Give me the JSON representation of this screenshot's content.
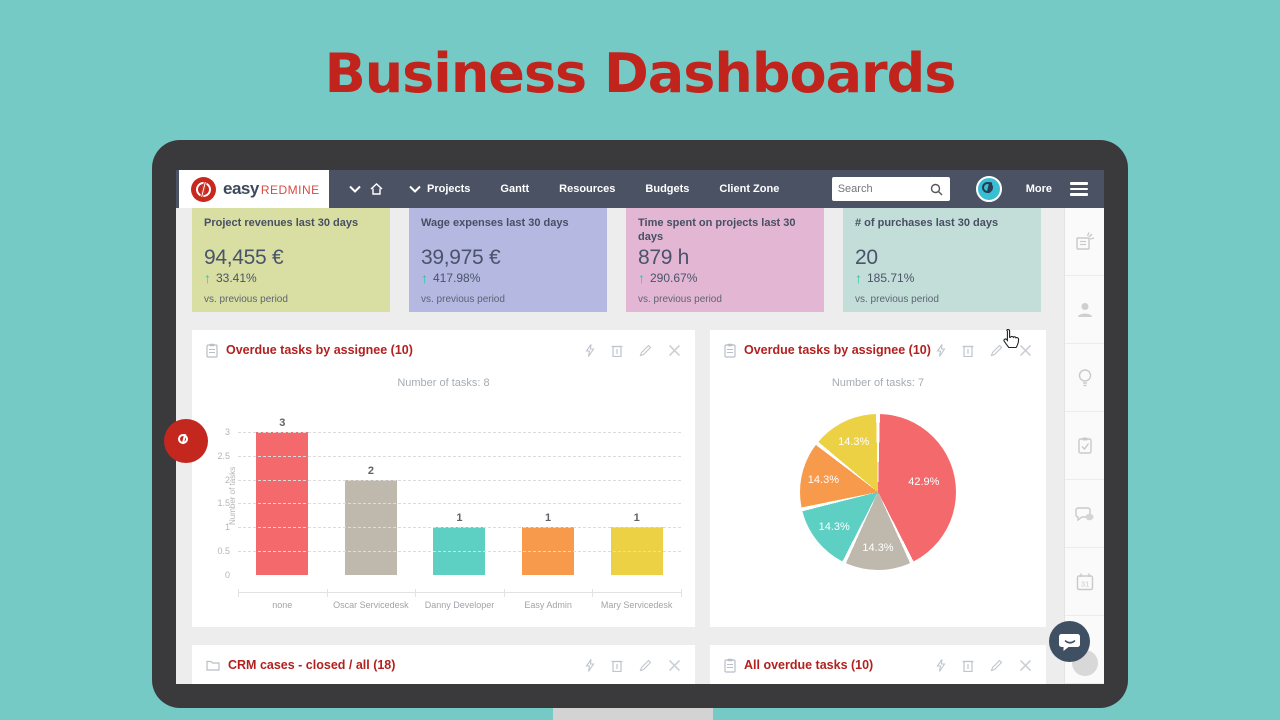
{
  "page_title": "Business Dashboards",
  "nav": {
    "brand": {
      "easy": "easy",
      "redmine": "REDMINE"
    },
    "items": [
      "Projects",
      "Gantt",
      "Resources",
      "Budgets",
      "Client Zone"
    ],
    "search_placeholder": "Search",
    "more_label": "More"
  },
  "kpis": [
    {
      "title": "Project revenues last 30 days",
      "value": "94,455 €",
      "change": "33.41%",
      "caption": "vs. previous period",
      "bg": "#d9dfa2"
    },
    {
      "title": "Wage expenses last 30 days",
      "value": "39,975 €",
      "change": "417.98%",
      "caption": "vs. previous period",
      "bg": "#b5b8e1"
    },
    {
      "title": "Time spent on projects last 30 days",
      "value": "879 h",
      "change": "290.67%",
      "caption": "vs. previous period",
      "bg": "#e3b7d3"
    },
    {
      "title": "# of purchases last 30 days",
      "value": "20",
      "change": "185.71%",
      "caption": "vs. previous period",
      "bg": "#c3ded9"
    }
  ],
  "panels": {
    "bar": {
      "title": "Overdue tasks by assignee (10)",
      "subtitle": "Number of tasks: 8"
    },
    "pie": {
      "title": "Overdue tasks by assignee (10)",
      "subtitle": "Number of tasks: 7"
    },
    "crm": {
      "title": "CRM cases - closed / all (18)"
    },
    "overdue_list": {
      "title": "All overdue tasks (10)"
    }
  },
  "chart_data": [
    {
      "type": "bar",
      "title": "Overdue tasks by assignee (10)",
      "subtitle": "Number of tasks: 8",
      "categories": [
        "none",
        "Oscar Servicedesk",
        "Danny Developer",
        "Easy Admin",
        "Mary Servicedesk"
      ],
      "values": [
        3,
        2,
        1,
        1,
        1
      ],
      "colors": [
        "#f4696b",
        "#bfb8ad",
        "#5dcfc3",
        "#f89a4c",
        "#ecd145"
      ],
      "ylabel": "Number of tasks",
      "yticks": [
        0,
        0.5,
        1,
        1.5,
        2,
        2.5,
        3
      ],
      "ylim": [
        0,
        3.5
      ],
      "grid": "dashed horizontal",
      "legend": "none"
    },
    {
      "type": "pie",
      "title": "Overdue tasks by assignee (10)",
      "subtitle": "Number of tasks: 7",
      "slices": [
        {
          "label": "42.9%",
          "value": 42.9,
          "color": "#f4696b"
        },
        {
          "label": "14.3%",
          "value": 14.3,
          "color": "#bfb8ad"
        },
        {
          "label": "14.3%",
          "value": 14.3,
          "color": "#5dcfc3"
        },
        {
          "label": "14.3%",
          "value": 14.3,
          "color": "#f89a4c"
        },
        {
          "label": "14.3%",
          "value": 14.3,
          "color": "#ecd145"
        }
      ],
      "legend": "none",
      "label_position": "inside"
    }
  ],
  "sidebar": {
    "calendar_label": "31",
    "icons": [
      "news",
      "user",
      "lightbulb",
      "tasks",
      "chat",
      "calendar",
      "hidden"
    ]
  },
  "colors": {
    "background_teal": "#76cac5",
    "title_red": "#c0241c",
    "nav_bg": "#4b5263",
    "panel_title_red": "#b2211f",
    "positive_green": "#2cc2a2",
    "frame_dark": "#3a3a3c"
  }
}
